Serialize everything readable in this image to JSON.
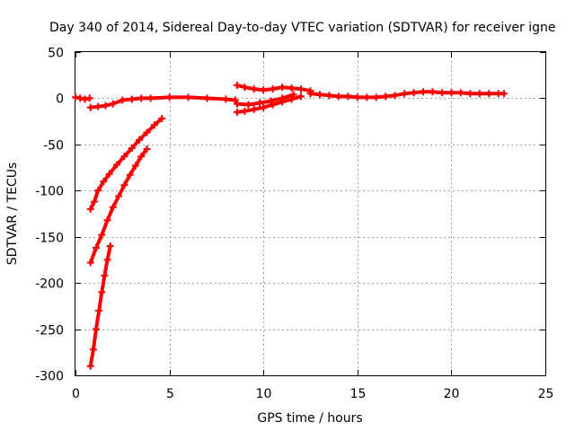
{
  "chart_data": {
    "type": "scatter",
    "title": "Day 340 of 2014, Sidereal Day-to-day VTEC variation (SDTVAR) for receiver igne",
    "xlabel": "GPS time / hours",
    "ylabel": "SDTVAR / TECUs",
    "xlim": [
      0,
      25
    ],
    "ylim": [
      -300,
      50
    ],
    "xticks": [
      0,
      5,
      10,
      15,
      20,
      25
    ],
    "yticks": [
      -300,
      -250,
      -200,
      -150,
      -100,
      -50,
      0,
      50
    ],
    "grid": true,
    "marker": "+",
    "color": "#ff0000",
    "series": [
      {
        "x": [
          0.0,
          0.25,
          0.5,
          0.75
        ],
        "y": [
          1,
          0,
          -1,
          0
        ]
      },
      {
        "x": [
          0.8,
          1.2,
          1.6,
          2.0,
          2.5,
          3.0,
          3.5,
          4.0,
          5.0,
          6.0,
          7.0,
          8.0,
          8.5
        ],
        "y": [
          -10,
          -9,
          -8,
          -6,
          -2,
          -1,
          0,
          0,
          1,
          1,
          0,
          -1,
          -2
        ]
      },
      {
        "x": [
          0.8,
          1.0,
          1.2,
          1.5,
          1.8,
          2.2,
          2.6,
          3.0,
          3.4,
          3.8,
          4.2,
          4.6
        ],
        "y": [
          -120,
          -112,
          -100,
          -90,
          -82,
          -72,
          -63,
          -54,
          -45,
          -37,
          -29,
          -22
        ]
      },
      {
        "x": [
          0.8,
          1.1,
          1.4,
          1.7,
          2.0,
          2.3,
          2.6,
          2.9,
          3.2,
          3.5,
          3.8
        ],
        "y": [
          -178,
          -162,
          -148,
          -132,
          -118,
          -106,
          -94,
          -83,
          -73,
          -63,
          -55
        ]
      },
      {
        "x": [
          0.8,
          0.95,
          1.1,
          1.25,
          1.4,
          1.55,
          1.7,
          1.85
        ],
        "y": [
          -290,
          -272,
          -250,
          -230,
          -210,
          -192,
          -175,
          -160
        ]
      },
      {
        "x": [
          8.6,
          9.0,
          9.5,
          10.0,
          10.5,
          11.0,
          11.5,
          12.0,
          12.5
        ],
        "y": [
          14,
          12,
          10,
          9,
          10,
          12,
          11,
          10,
          8
        ]
      },
      {
        "x": [
          8.6,
          9.0,
          9.5,
          10.0,
          10.5,
          11.0,
          11.5,
          12.0
        ],
        "y": [
          -15,
          -14,
          -12,
          -10,
          -7,
          -4,
          -1,
          2
        ]
      },
      {
        "x": [
          8.6,
          9.2,
          9.8,
          10.4,
          11.0,
          11.6
        ],
        "y": [
          -6,
          -7,
          -5,
          -3,
          0,
          4
        ]
      },
      {
        "x": [
          12.5,
          13.0,
          13.5,
          14.0,
          14.5,
          15.0,
          15.5,
          16.0,
          16.5,
          17.0,
          17.5,
          18.0,
          18.5,
          19.0,
          19.5,
          20.0,
          20.5,
          21.0,
          21.5,
          22.0,
          22.5,
          22.8
        ],
        "y": [
          5,
          4,
          3,
          2,
          2,
          1,
          1,
          1,
          2,
          3,
          5,
          6,
          7,
          7,
          6,
          6,
          6,
          5,
          5,
          5,
          5,
          5
        ]
      }
    ]
  }
}
